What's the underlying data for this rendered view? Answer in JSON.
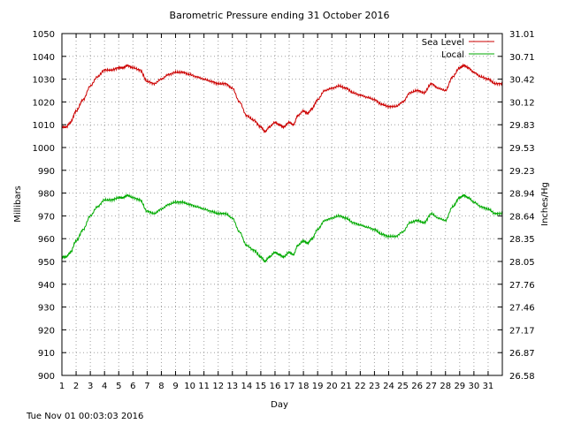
{
  "chart_data": {
    "type": "line",
    "title": "Barometric Pressure ending 31 October 2016",
    "xlabel": "Day",
    "ylabel": "Millibars",
    "y2label": "Inches/Hg",
    "footer": "Tue Nov 01 00:03:03 2016",
    "xlim": [
      1,
      32
    ],
    "ylim": [
      900,
      1050
    ],
    "x_ticks": [
      "1",
      "2",
      "3",
      "4",
      "5",
      "6",
      "7",
      "8",
      "9",
      "10",
      "11",
      "12",
      "13",
      "14",
      "15",
      "16",
      "17",
      "18",
      "19",
      "20",
      "21",
      "22",
      "23",
      "24",
      "25",
      "26",
      "27",
      "28",
      "29",
      "30",
      "31"
    ],
    "y_ticks": [
      900,
      910,
      920,
      930,
      940,
      950,
      960,
      970,
      980,
      990,
      1000,
      1010,
      1020,
      1030,
      1040,
      1050
    ],
    "y2_ticks": [
      "26.58",
      "26.87",
      "27.17",
      "27.46",
      "27.76",
      "28.05",
      "28.35",
      "28.64",
      "28.94",
      "29.23",
      "29.53",
      "29.83",
      "30.12",
      "30.42",
      "30.71",
      "31.01"
    ],
    "grid": true,
    "legend_position": "top-right",
    "series": [
      {
        "name": "Sea Level",
        "color": "#cc0000",
        "x": [
          1,
          1.3,
          1.6,
          2,
          2.5,
          3,
          3.5,
          4,
          4.5,
          5,
          5.3,
          5.6,
          6,
          6.5,
          7,
          7.5,
          8,
          8.5,
          9,
          9.5,
          10,
          10.5,
          11,
          11.5,
          12,
          12.5,
          13,
          13.5,
          14,
          14.5,
          15,
          15.3,
          15.6,
          16,
          16.3,
          16.6,
          17,
          17.3,
          17.6,
          18,
          18.3,
          18.6,
          19,
          19.5,
          20,
          20.5,
          21,
          21.5,
          22,
          22.5,
          23,
          23.5,
          24,
          24.5,
          25,
          25.5,
          26,
          26.5,
          27,
          27.5,
          28,
          28.5,
          29,
          29.3,
          29.6,
          30,
          30.5,
          31,
          31.5,
          32
        ],
        "values": [
          1009,
          1009,
          1011,
          1016,
          1021,
          1027,
          1031,
          1034,
          1034,
          1035,
          1035,
          1036,
          1035,
          1034,
          1029,
          1028,
          1030,
          1032,
          1033,
          1033,
          1032,
          1031,
          1030,
          1029,
          1028,
          1028,
          1026,
          1020,
          1014,
          1012,
          1009,
          1007,
          1009,
          1011,
          1010,
          1009,
          1011,
          1010,
          1014,
          1016,
          1015,
          1017,
          1021,
          1025,
          1026,
          1027,
          1026,
          1024,
          1023,
          1022,
          1021,
          1019,
          1018,
          1018,
          1020,
          1024,
          1025,
          1024,
          1028,
          1026,
          1025,
          1031,
          1035,
          1036,
          1035,
          1033,
          1031,
          1030,
          1028,
          1028
        ]
      },
      {
        "name": "Local",
        "color": "#00aa00",
        "x": [
          1,
          1.3,
          1.6,
          2,
          2.5,
          3,
          3.5,
          4,
          4.5,
          5,
          5.3,
          5.6,
          6,
          6.5,
          7,
          7.5,
          8,
          8.5,
          9,
          9.5,
          10,
          10.5,
          11,
          11.5,
          12,
          12.5,
          13,
          13.5,
          14,
          14.5,
          15,
          15.3,
          15.6,
          16,
          16.3,
          16.6,
          17,
          17.3,
          17.6,
          18,
          18.3,
          18.6,
          19,
          19.5,
          20,
          20.5,
          21,
          21.5,
          22,
          22.5,
          23,
          23.5,
          24,
          24.5,
          25,
          25.5,
          26,
          26.5,
          27,
          27.5,
          28,
          28.5,
          29,
          29.3,
          29.6,
          30,
          30.5,
          31,
          31.5,
          32
        ],
        "values": [
          952,
          952,
          954,
          959,
          964,
          970,
          974,
          977,
          977,
          978,
          978,
          979,
          978,
          977,
          972,
          971,
          973,
          975,
          976,
          976,
          975,
          974,
          973,
          972,
          971,
          971,
          969,
          963,
          957,
          955,
          952,
          950,
          952,
          954,
          953,
          952,
          954,
          953,
          957,
          959,
          958,
          960,
          964,
          968,
          969,
          970,
          969,
          967,
          966,
          965,
          964,
          962,
          961,
          961,
          963,
          967,
          968,
          967,
          971,
          969,
          968,
          974,
          978,
          979,
          978,
          976,
          974,
          973,
          971,
          971
        ]
      }
    ]
  }
}
